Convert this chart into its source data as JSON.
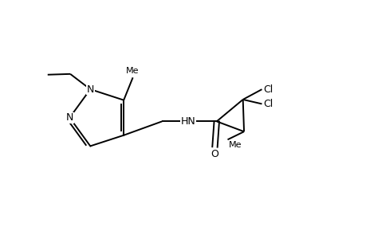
{
  "background_color": "#ffffff",
  "line_color": "#000000",
  "line_width": 1.4,
  "font_size": 9,
  "figsize": [
    4.6,
    3.0
  ],
  "dpi": 100,
  "xlim": [
    0,
    10
  ],
  "ylim": [
    0,
    6.5
  ]
}
